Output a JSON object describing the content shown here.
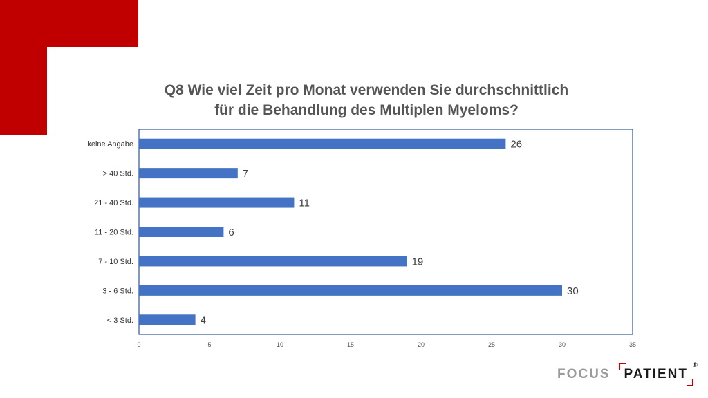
{
  "header": {
    "title_line1": "Q8 Wie viel Zeit pro Monat verwenden Sie durchschnittlich",
    "title_line2": "für die Behandlung des Multiplen Myeloms?"
  },
  "chart_data": {
    "type": "bar",
    "orientation": "horizontal",
    "categories": [
      "keine Angabe",
      "> 40 Std.",
      "21 - 40 Std.",
      "11 - 20 Std.",
      "7 - 10 Std.",
      "3 - 6 Std.",
      "< 3 Std."
    ],
    "values": [
      26,
      7,
      11,
      6,
      19,
      30,
      4
    ],
    "xlim": [
      0,
      35
    ],
    "xticks": [
      0,
      5,
      10,
      15,
      20,
      25,
      30,
      35
    ],
    "title": "Q8 Wie viel Zeit pro Monat verwenden Sie durchschnittlich für die Behandlung des Multiplen Myeloms?",
    "xlabel": "",
    "ylabel": "",
    "bar_color": "#4472c4",
    "grid": false,
    "legend": "none"
  },
  "logo": {
    "word1": "FOCUS",
    "word2": "PATIENT",
    "registered": "®"
  },
  "colors": {
    "accent_red": "#c00000",
    "bar_blue": "#4472c4",
    "frame_blue": "#2f5597"
  }
}
